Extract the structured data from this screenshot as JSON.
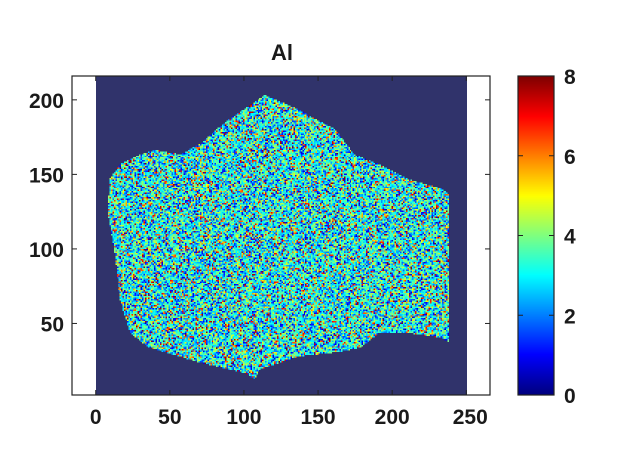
{
  "chart_data": {
    "type": "heatmap",
    "title": "Al",
    "xlabel": "",
    "ylabel": "",
    "xlim": [
      -16,
      266
    ],
    "ylim": [
      2,
      216
    ],
    "image_extent": {
      "x": [
        0,
        250
      ],
      "y": [
        0,
        216
      ]
    },
    "xticks": [
      0,
      50,
      100,
      150,
      200,
      250
    ],
    "yticks": [
      50,
      100,
      150,
      200
    ],
    "colormap": "jet",
    "clim": [
      0,
      8
    ],
    "colorbar": {
      "ticks": [
        0,
        2,
        4,
        6,
        8
      ],
      "placement": "right"
    },
    "background_value": 0,
    "background_color": "#30336b",
    "sample_region_polygon": [
      [
        114,
        203
      ],
      [
        137,
        193
      ],
      [
        161,
        180
      ],
      [
        174,
        163
      ],
      [
        191,
        156
      ],
      [
        211,
        146
      ],
      [
        232,
        140
      ],
      [
        238,
        136
      ],
      [
        238,
        36
      ],
      [
        232,
        39
      ],
      [
        211,
        42
      ],
      [
        191,
        42
      ],
      [
        178,
        32
      ],
      [
        164,
        29
      ],
      [
        137,
        26
      ],
      [
        110,
        17
      ],
      [
        107,
        11
      ],
      [
        100,
        15
      ],
      [
        70,
        22
      ],
      [
        36,
        32
      ],
      [
        23,
        42
      ],
      [
        16,
        66
      ],
      [
        13,
        93
      ],
      [
        8,
        123
      ],
      [
        9,
        146
      ],
      [
        16,
        156
      ],
      [
        30,
        163
      ],
      [
        40,
        166
      ],
      [
        57,
        163
      ],
      [
        70,
        170
      ],
      [
        90,
        187
      ]
    ],
    "sample_value_distribution": "noisy, mostly 1-5 with scattered 6-8",
    "grid": false
  }
}
